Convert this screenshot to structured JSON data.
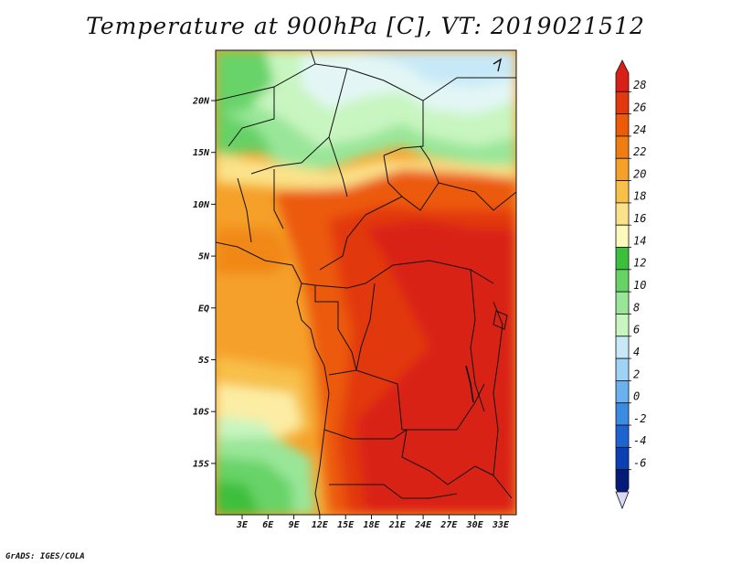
{
  "title": "Temperature at 900hPa [C], VT: 2019021512",
  "credit": "GrADS: IGES/COLA",
  "map": {
    "lat_labels": [
      "20N",
      "15N",
      "10N",
      "5N",
      "EQ",
      "5S",
      "10S",
      "15S"
    ],
    "lon_labels": [
      "3E",
      "6E",
      "9E",
      "12E",
      "15E",
      "18E",
      "21E",
      "24E",
      "27E",
      "30E",
      "33E"
    ]
  },
  "colorbar": {
    "labels": [
      "28",
      "26",
      "24",
      "22",
      "20",
      "18",
      "16",
      "14",
      "12",
      "10",
      "8",
      "6",
      "4",
      "2",
      "0",
      "-2",
      "-4",
      "-6"
    ],
    "colors": [
      "#d92018",
      "#e2380e",
      "#ec5a0a",
      "#f07d12",
      "#f5a029",
      "#f7c048",
      "#fbe28a",
      "#fdf8bc",
      "#3cbf3c",
      "#67d367",
      "#99e699",
      "#c8f5c0",
      "#c7e9f7",
      "#9fd2f5",
      "#6ab1ee",
      "#3c8be3",
      "#1e63d2",
      "#0c3fb3",
      "#061a78"
    ]
  }
}
